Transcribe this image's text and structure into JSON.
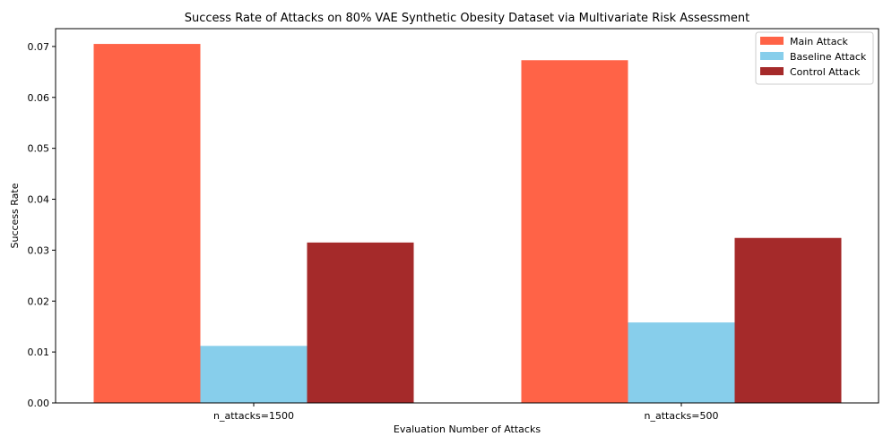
{
  "chart_data": {
    "type": "bar",
    "title": "Success Rate of Attacks on 80% VAE Synthetic Obesity Dataset via Multivariate Risk Assessment",
    "xlabel": "Evaluation Number of Attacks",
    "ylabel": "Success Rate",
    "categories": [
      "n_attacks=1500",
      "n_attacks=500"
    ],
    "series": [
      {
        "name": "Main Attack",
        "color": "#ff6347",
        "values": [
          0.0705,
          0.0673
        ]
      },
      {
        "name": "Baseline Attack",
        "color": "#87ceeb",
        "values": [
          0.0112,
          0.0158
        ]
      },
      {
        "name": "Control Attack",
        "color": "#a52a2a",
        "values": [
          0.0315,
          0.0324
        ]
      }
    ],
    "ylim": [
      0,
      0.0735
    ],
    "yticks": [
      "0.00",
      "0.01",
      "0.02",
      "0.03",
      "0.04",
      "0.05",
      "0.06",
      "0.07"
    ],
    "grid": false,
    "legend_position": "top-right"
  }
}
